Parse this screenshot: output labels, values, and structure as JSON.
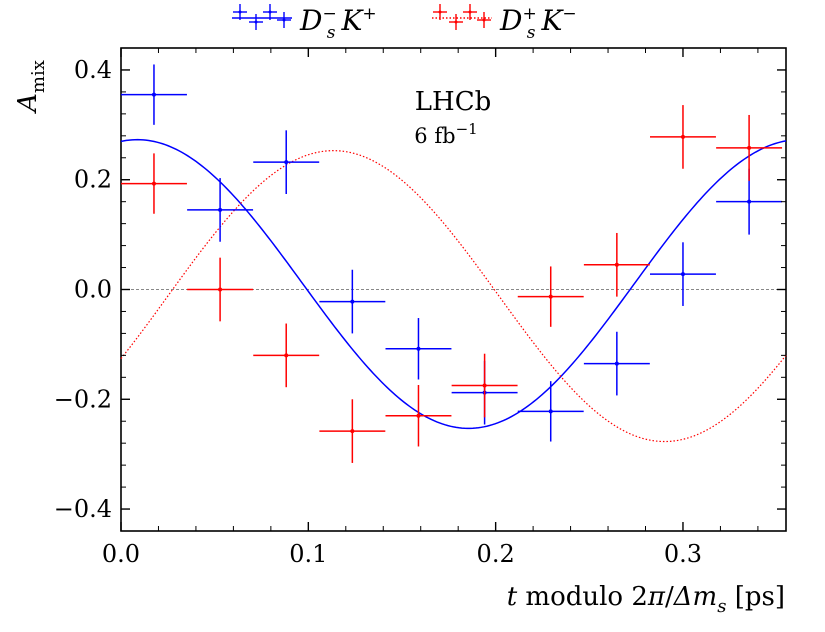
{
  "chart_data": {
    "type": "scatter",
    "title": "",
    "xlabel": "t modulo 2π/Δm_s [ps]",
    "ylabel": "A_mix",
    "xlim": [
      0.0,
      0.355
    ],
    "ylim": [
      -0.44,
      0.44
    ],
    "x_ticks": [
      0.0,
      0.1,
      0.2,
      0.3
    ],
    "x_tick_labels": [
      "0.0",
      "0.1",
      "0.2",
      "0.3"
    ],
    "y_ticks": [
      -0.4,
      -0.2,
      0.0,
      0.2,
      0.4
    ],
    "y_tick_labels": [
      "−0.4",
      "−0.2",
      "0.0",
      "0.2",
      "0.4"
    ],
    "grid": false,
    "legend_position": "top-outside",
    "annotations": {
      "experiment": "LHCb",
      "luminosity": "6 fb",
      "luminosity_exp": "−1"
    },
    "series": [
      {
        "name": "D_s^- K^+",
        "legend_main": "D",
        "legend_sub": "s",
        "legend_sup": "−",
        "legend_tail": "K",
        "legend_tail_sup": "+",
        "color": "#0000ff",
        "x": [
          0.0176,
          0.0529,
          0.0882,
          0.1235,
          0.1588,
          0.1941,
          0.2294,
          0.2647,
          0.3,
          0.3353
        ],
        "x_err": 0.0176,
        "y": [
          0.355,
          0.145,
          0.232,
          -0.022,
          -0.108,
          -0.188,
          -0.222,
          -0.135,
          0.028,
          0.16
        ],
        "y_err": [
          0.055,
          0.058,
          0.058,
          0.058,
          0.056,
          0.058,
          0.055,
          0.058,
          0.058,
          0.06
        ],
        "fit": {
          "offset": 0.01,
          "amplitude": 0.263,
          "phase": 0.155
        }
      },
      {
        "name": "D_s^+ K^-",
        "legend_main": "D",
        "legend_sub": "s",
        "legend_sup": "+",
        "legend_tail": "K",
        "legend_tail_sup": "−",
        "color": "#ff0000",
        "x": [
          0.0176,
          0.0529,
          0.0882,
          0.1235,
          0.1588,
          0.1941,
          0.2294,
          0.2647,
          0.3,
          0.3353
        ],
        "x_err": 0.0176,
        "y": [
          0.193,
          0.0,
          -0.12,
          -0.258,
          -0.23,
          -0.175,
          -0.013,
          0.045,
          0.278,
          0.258
        ],
        "y_err": [
          0.055,
          0.058,
          0.058,
          0.058,
          0.056,
          0.058,
          0.055,
          0.058,
          0.058,
          0.06
        ],
        "fit": {
          "offset": -0.012,
          "amplitude": 0.265,
          "phase": 2.015
        }
      }
    ],
    "reference_line": {
      "y": 0.0,
      "color": "#888888"
    }
  }
}
